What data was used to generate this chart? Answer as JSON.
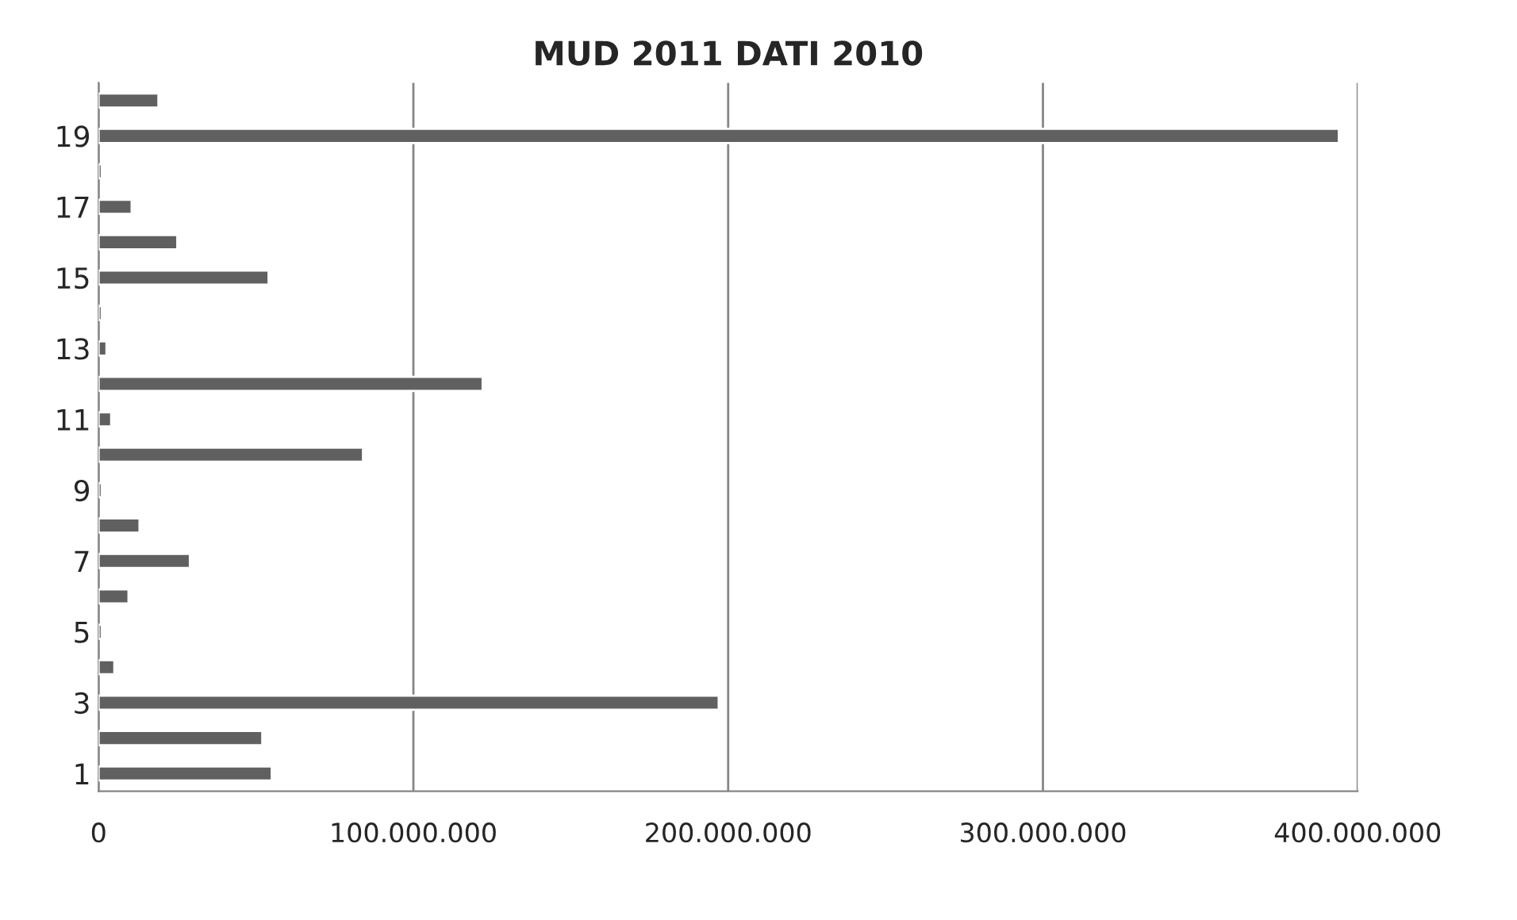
{
  "chart_data": {
    "type": "bar",
    "orientation": "horizontal",
    "title": "MUD 2011 DATI 2010",
    "categories": [
      null,
      "19",
      null,
      "17",
      null,
      "15",
      null,
      "13",
      null,
      "11",
      null,
      "9",
      null,
      "7",
      null,
      "5",
      null,
      "3",
      null,
      "1"
    ],
    "values": [
      19000000,
      394000000,
      1000000,
      10500000,
      25000000,
      54000000,
      1000000,
      2500000,
      122000000,
      4000000,
      84000000,
      1000000,
      13000000,
      29000000,
      9500000,
      1000000,
      5000000,
      197000000,
      52000000,
      55000000
    ],
    "color": "#606060",
    "xlim": [
      0,
      400000000
    ],
    "xticks": [
      0,
      {
        "value": 100000000,
        "label": "100.000.000"
      },
      {
        "value": 200000000,
        "label": "200.000.000"
      },
      {
        "value": 300000000,
        "label": "300.000.000"
      },
      {
        "value": 400000000,
        "label": "400.000.000"
      }
    ],
    "grid": "x",
    "legend": false
  }
}
